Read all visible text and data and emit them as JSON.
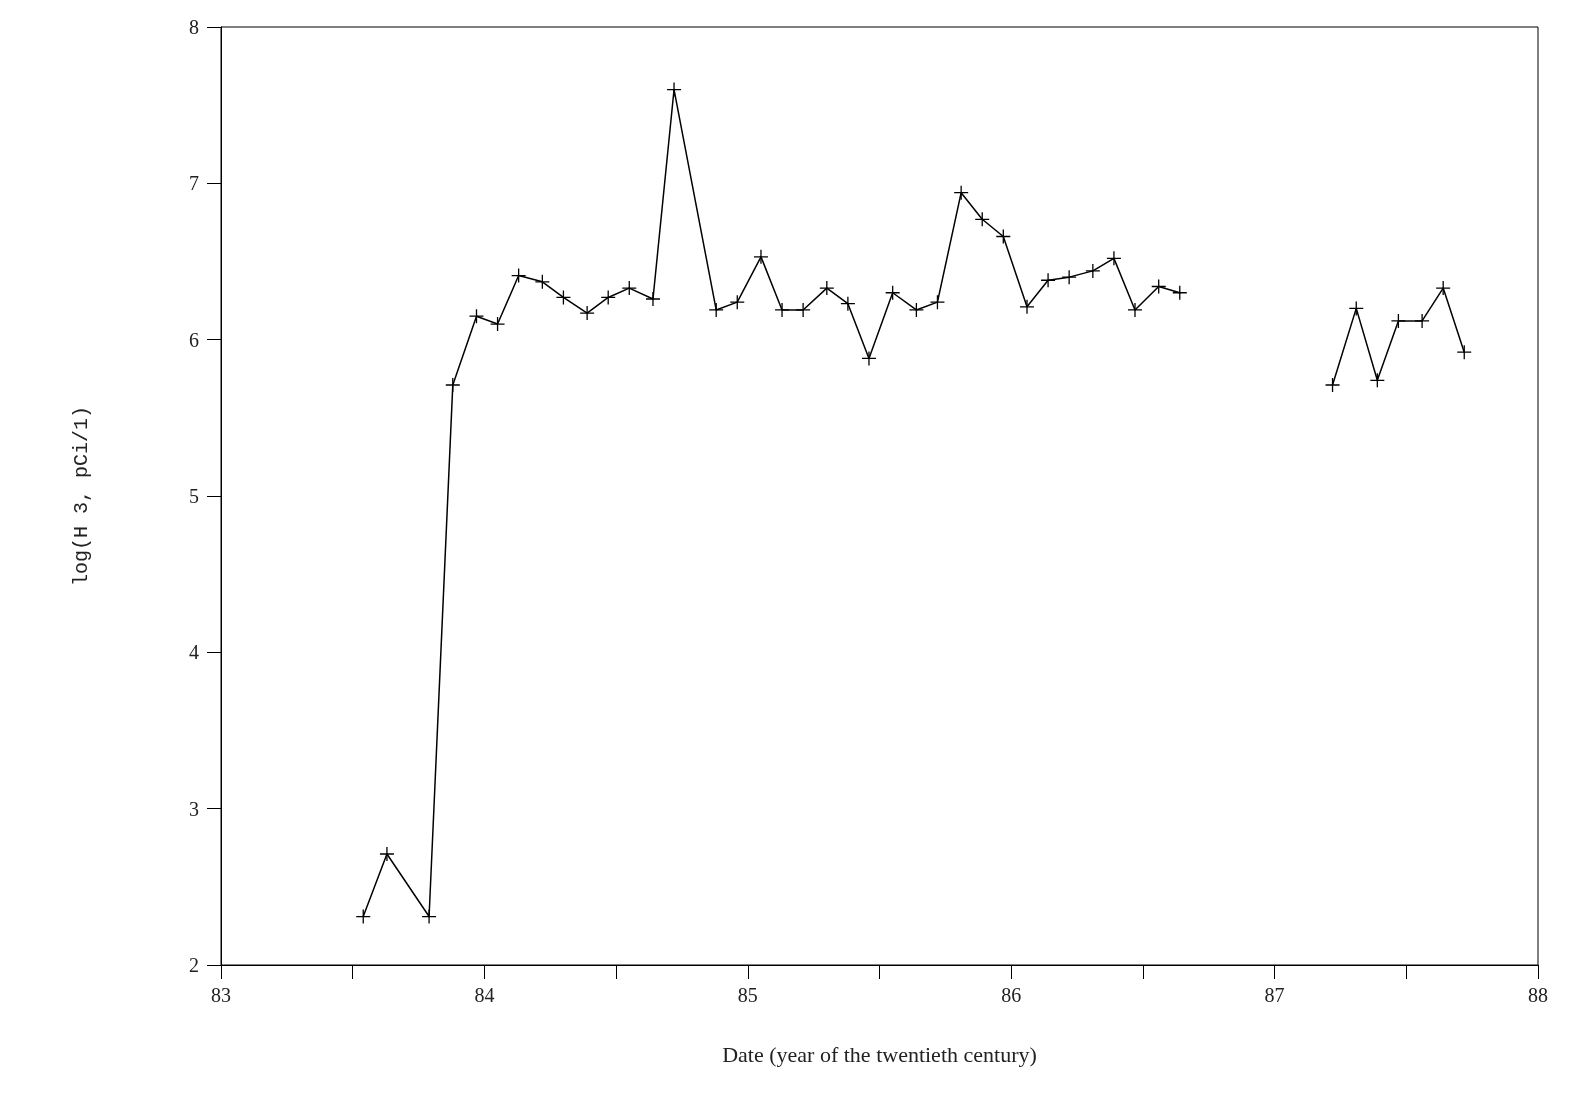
{
  "chart_data": {
    "type": "line",
    "xlabel": "Date (year of the twentieth century)",
    "ylabel": "log(H 3, pCi/1)",
    "xlim": [
      83,
      88
    ],
    "xticks": [
      83,
      {
        "value": 83.5,
        "label": null
      },
      84,
      {
        "value": 84.5,
        "label": null
      },
      85,
      {
        "value": 85.5,
        "label": null
      },
      86,
      {
        "value": 86.5,
        "label": null
      },
      87,
      {
        "value": 87.5,
        "label": null
      },
      88
    ],
    "ylim": [
      2,
      8
    ],
    "yticks": [
      2,
      3,
      4,
      5,
      6,
      7,
      8
    ],
    "grid": false,
    "marker": "cross",
    "line_style": "solid",
    "series": [
      {
        "color": "#000000",
        "x": [
          83.54,
          83.63,
          83.79,
          83.88,
          83.97,
          84.05,
          84.13,
          84.22,
          84.3,
          84.39,
          84.47,
          84.55,
          84.64,
          84.72,
          84.88,
          84.96,
          85.05,
          85.13,
          85.21,
          85.3,
          85.38,
          85.46,
          85.55,
          85.64,
          85.72,
          85.81,
          85.89,
          85.97,
          86.06,
          86.14,
          86.22,
          86.31,
          86.39,
          86.47,
          86.56,
          86.64
        ],
        "values": [
          2.31,
          2.71,
          2.31,
          5.71,
          6.15,
          6.1,
          6.41,
          6.37,
          6.27,
          6.17,
          6.27,
          6.33,
          6.26,
          7.6,
          6.19,
          6.24,
          6.53,
          6.19,
          6.19,
          6.33,
          6.23,
          5.88,
          6.3,
          6.19,
          6.24,
          6.94,
          6.77,
          6.66,
          6.21,
          6.38,
          6.4,
          6.44,
          6.52,
          6.19,
          6.34,
          6.3
        ]
      },
      {
        "color": "#000000",
        "x": [
          87.22,
          87.31,
          87.39,
          87.47,
          87.56,
          87.64,
          87.72
        ],
        "values": [
          5.71,
          6.2,
          5.74,
          6.12,
          6.12,
          6.33,
          5.92
        ]
      }
    ]
  }
}
